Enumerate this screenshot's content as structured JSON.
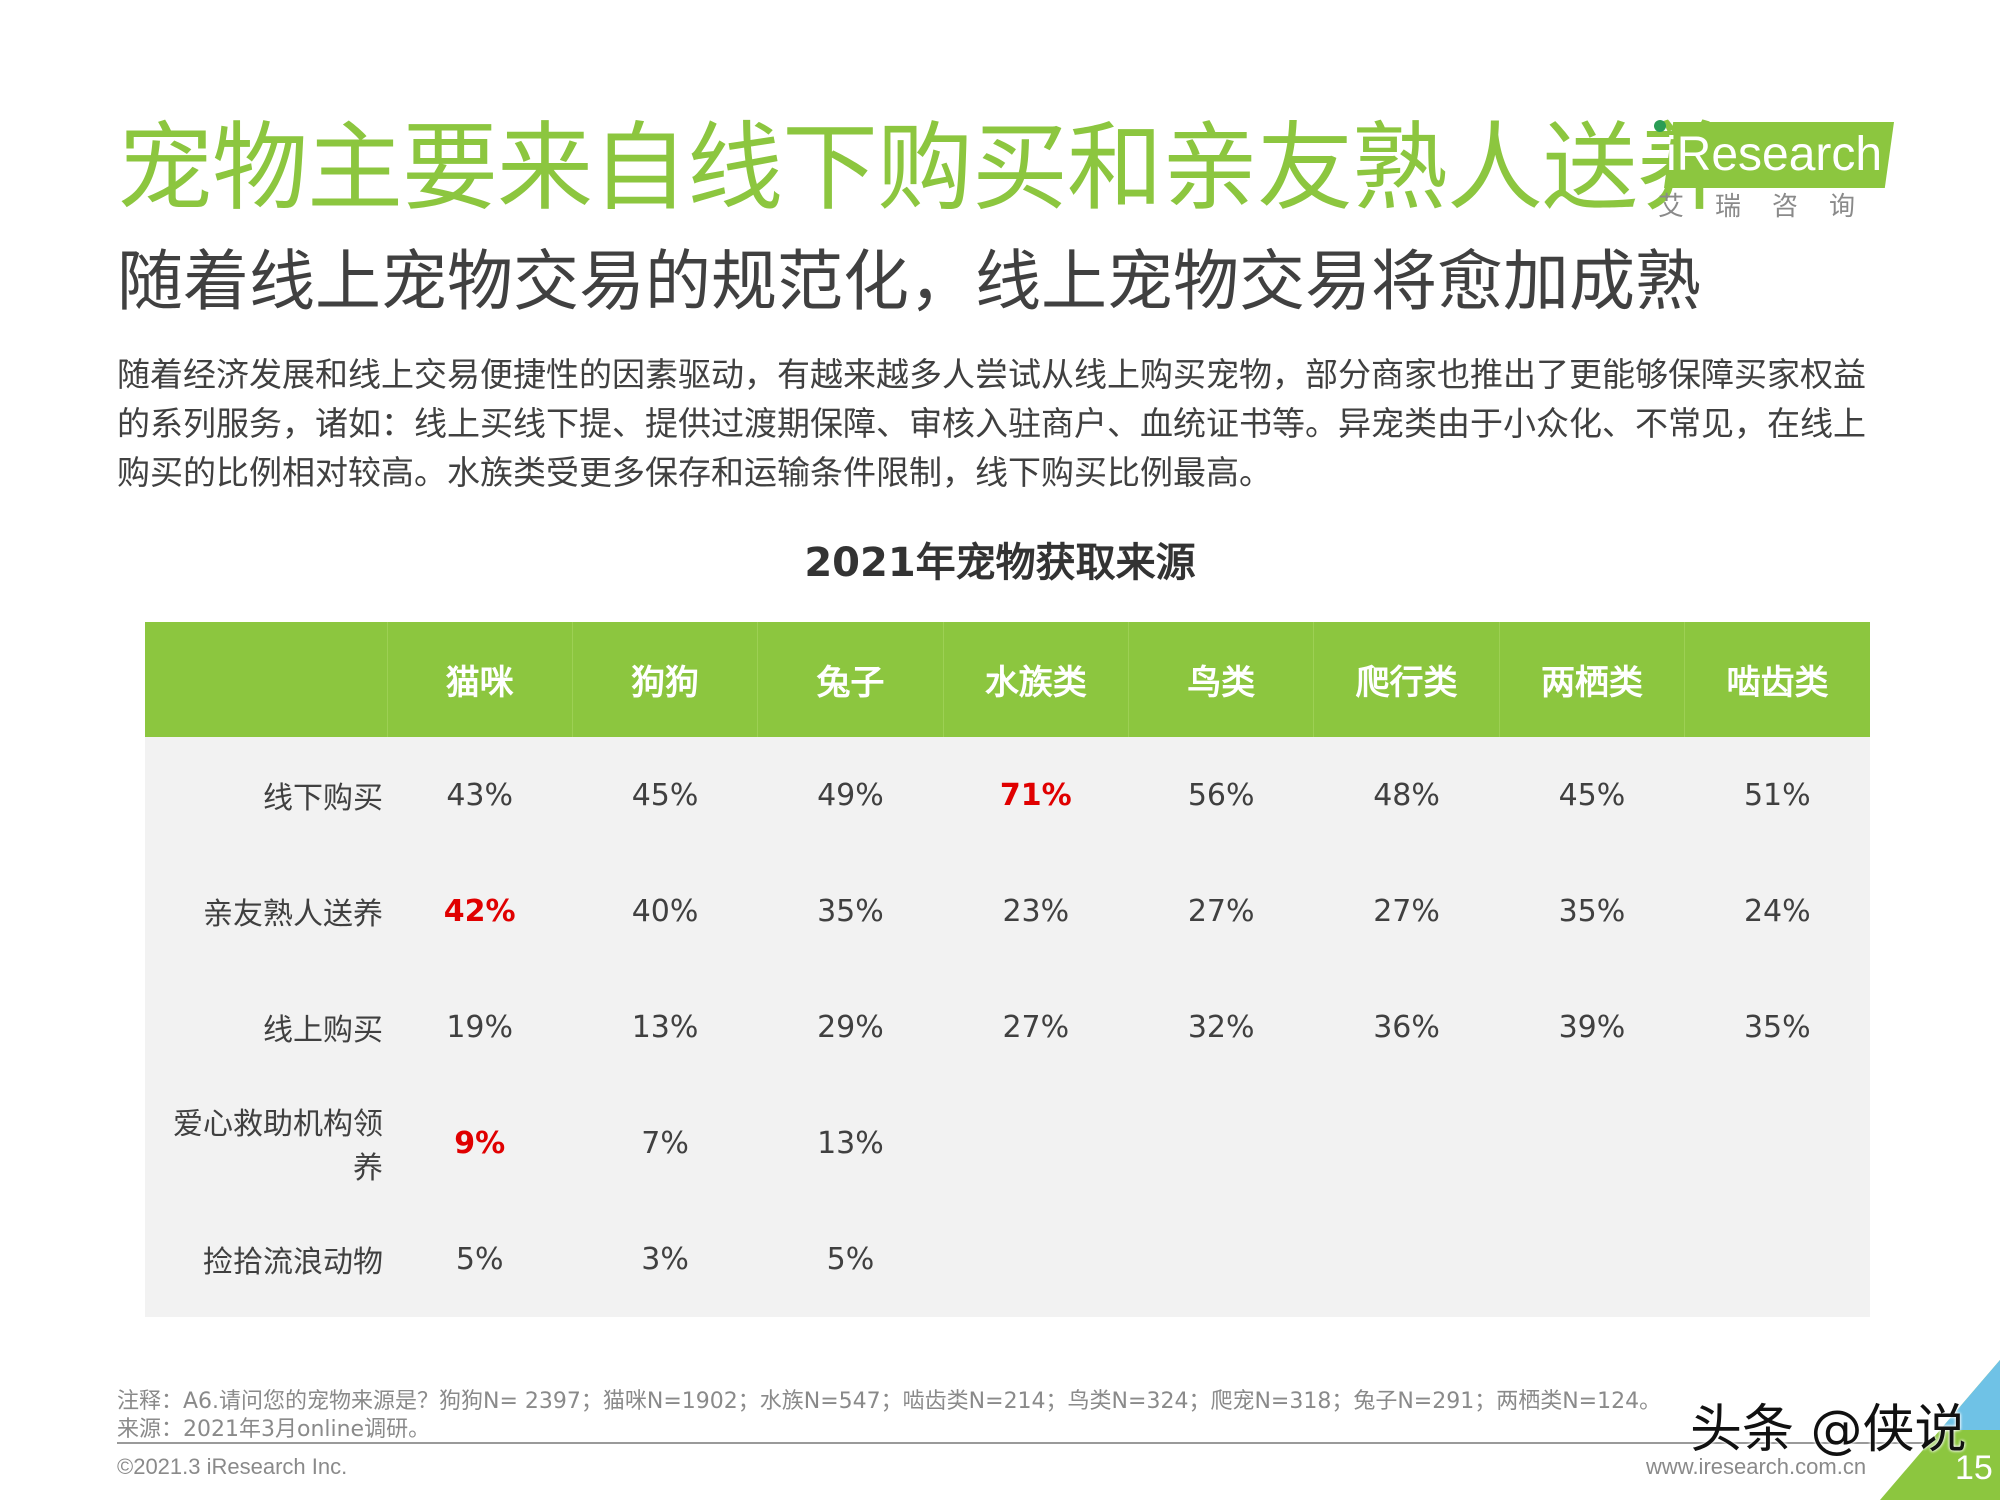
{
  "header": {
    "title": "宠物主要来自线下购买和亲友熟人送养",
    "subtitle": "随着线上宠物交易的规范化，线上宠物交易将愈加成熟"
  },
  "logo": {
    "name": "iResearch",
    "sub": "艾瑞咨询"
  },
  "body_text": "随着经济发展和线上交易便捷性的因素驱动，有越来越多人尝试从线上购买宠物，部分商家也推出了更能够保障买家权益的系列服务，诸如：线上买线下提、提供过渡期保障、审核入驻商户、血统证书等。异宠类由于小众化、不常见，在线上购买的比例相对较高。水族类受更多保存和运输条件限制，线下购买比例最高。",
  "table": {
    "title": "2021年宠物获取来源",
    "columns": [
      "猫咪",
      "狗狗",
      "兔子",
      "水族类",
      "鸟类",
      "爬行类",
      "两栖类",
      "啮齿类"
    ],
    "rows": [
      {
        "label": "线下购买",
        "cells": [
          "43%",
          "45%",
          "49%",
          "71%",
          "56%",
          "48%",
          "45%",
          "51%"
        ]
      },
      {
        "label": "亲友熟人送养",
        "cells": [
          "42%",
          "40%",
          "35%",
          "23%",
          "27%",
          "27%",
          "35%",
          "24%"
        ]
      },
      {
        "label": "线上购买",
        "cells": [
          "19%",
          "13%",
          "29%",
          "27%",
          "32%",
          "36%",
          "39%",
          "35%"
        ]
      },
      {
        "label": "爱心救助机构领养",
        "cells": [
          "9%",
          "7%",
          "13%",
          "",
          "",
          "",
          "",
          ""
        ]
      },
      {
        "label": "捡拾流浪动物",
        "cells": [
          "5%",
          "3%",
          "5%",
          "",
          "",
          "",
          "",
          ""
        ]
      }
    ],
    "highlight_color": "#e00000"
  },
  "footer": {
    "note": "注释：A6.请问您的宠物来源是？狗狗N= 2397；猫咪N=1902；水族N=547；啮齿类N=214；鸟类N=324；爬宠N=318；兔子N=291；两栖类N=124。",
    "source": "来源：2021年3月online调研。",
    "copyright": "©2021.3 iResearch Inc.",
    "website": "www.iresearch.com.cn",
    "page_number": "15",
    "watermark": "头条 @侠说"
  },
  "colors": {
    "accent_green": "#8cc63f",
    "header_text": "#ffffff",
    "cell_background": "#f2f2f2",
    "text": "#404040"
  }
}
